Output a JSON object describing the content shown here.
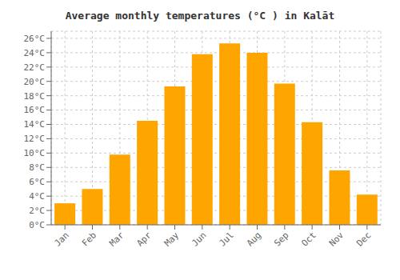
{
  "chart_data": {
    "type": "bar",
    "title": "Average monthly temperatures (°C ) in Kalāt",
    "categories": [
      "Jan",
      "Feb",
      "Mar",
      "Apr",
      "May",
      "Jun",
      "Jul",
      "Aug",
      "Sep",
      "Oct",
      "Nov",
      "Dec"
    ],
    "values": [
      3.0,
      5.0,
      9.8,
      14.5,
      19.3,
      23.8,
      25.3,
      24.0,
      19.7,
      14.3,
      7.6,
      4.2
    ],
    "color": "#FFA500",
    "ylim": [
      0,
      27
    ],
    "yticks": [
      {
        "value": 0,
        "label": "0°C"
      },
      {
        "value": 2,
        "label": "2°C"
      },
      {
        "value": 4,
        "label": "4°C"
      },
      {
        "value": 6,
        "label": "6°C"
      },
      {
        "value": 8,
        "label": "8°C"
      },
      {
        "value": 10,
        "label": "10°C"
      },
      {
        "value": 12,
        "label": "12°C"
      },
      {
        "value": 14,
        "label": "14°C"
      },
      {
        "value": 16,
        "label": "16°C"
      },
      {
        "value": 18,
        "label": "18°C"
      },
      {
        "value": 20,
        "label": "20°C"
      },
      {
        "value": 22,
        "label": "22°C"
      },
      {
        "value": 24,
        "label": "24°C"
      },
      {
        "value": 26,
        "label": "26°C"
      }
    ],
    "grid": true
  }
}
